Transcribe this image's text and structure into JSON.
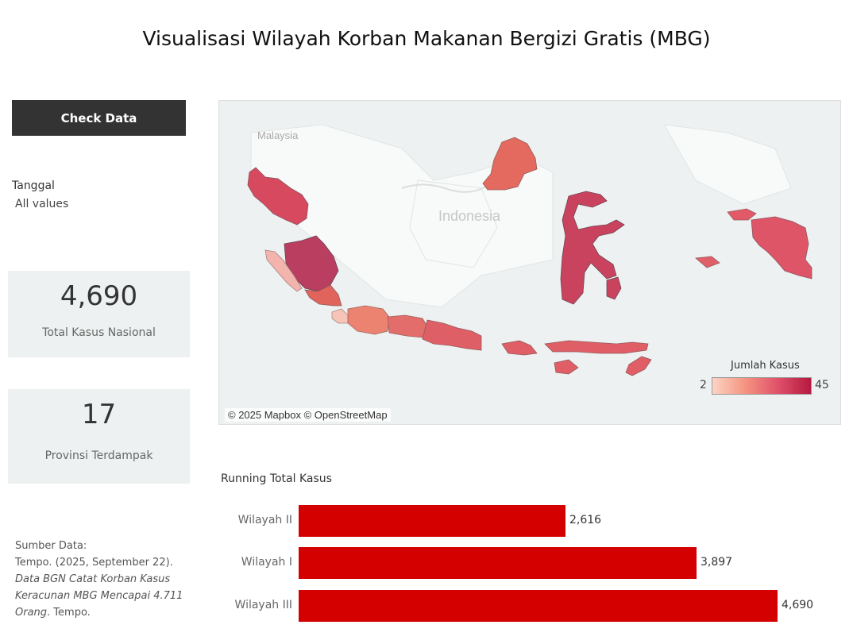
{
  "page": {
    "title": "Visualisasi Wilayah Korban Makanan Bergizi Gratis (MBG)"
  },
  "check_button": {
    "label": "Check Data"
  },
  "filter": {
    "label": "Tanggal",
    "value": "All values"
  },
  "kpis": [
    {
      "value": "4,690",
      "label": "Total Kasus Nasional"
    },
    {
      "value": "17",
      "label": "Provinsi Terdampak"
    }
  ],
  "source": {
    "heading": "Sumber Data:",
    "citation": "Tempo. (2025, September 22).",
    "article_title": "Data BGN Catat Korban Kasus Keracunan MBG Mencapai 4.711 Orang",
    "publisher": ". Tempo."
  },
  "map": {
    "country_label": "Indonesia",
    "neighbor_label": "Malaysia",
    "copyright": "© 2025 Mapbox © OpenStreetMap",
    "legend": {
      "title": "Jumlah Kasus",
      "min": "2",
      "max": "45",
      "colors": [
        "#fcd4c4",
        "#f49480",
        "#e0506a",
        "#b5193f"
      ]
    }
  },
  "chart_data": {
    "type": "bar",
    "title": "Running Total Kasus",
    "orientation": "horizontal",
    "categories": [
      "Wilayah II",
      "Wilayah I",
      "Wilayah III"
    ],
    "values": [
      2616,
      3897,
      4690
    ],
    "value_labels": [
      "2,616",
      "3,897",
      "4,690"
    ],
    "xlim": [
      0,
      4690
    ],
    "color": "#d40000"
  }
}
